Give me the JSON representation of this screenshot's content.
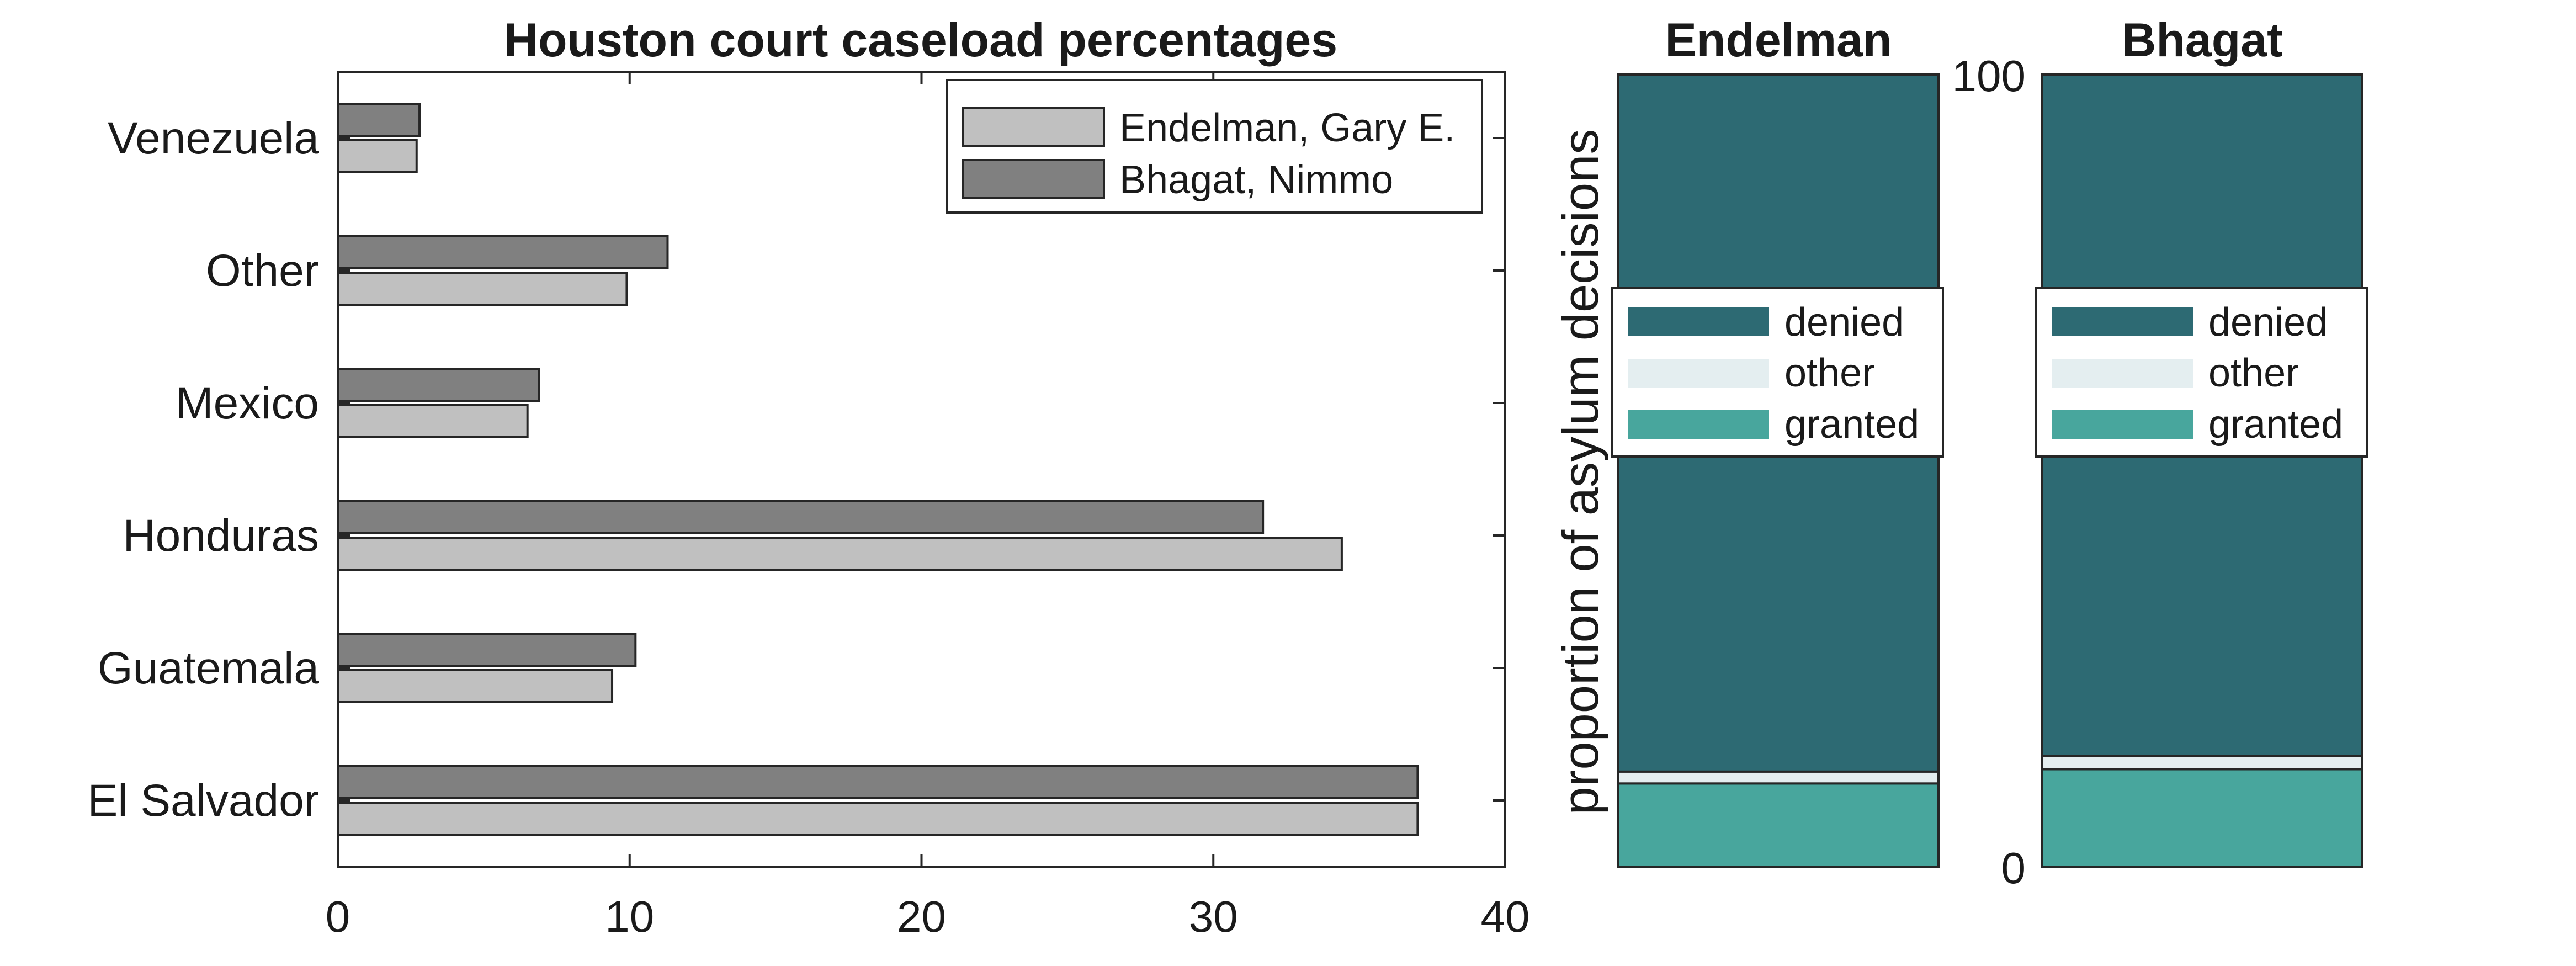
{
  "chart_data": [
    {
      "type": "bar",
      "orientation": "horizontal",
      "title": "Houston court caseload percentages",
      "categories": [
        "Venezuela",
        "Other",
        "Mexico",
        "Honduras",
        "Guatemala",
        "El Salvador"
      ],
      "series": [
        {
          "name": "Endelman, Gary E.",
          "values": [
            2.7,
            9.9,
            6.5,
            34.4,
            9.4,
            37.0
          ],
          "color": "#c0c0c0"
        },
        {
          "name": "Bhagat, Nimmo",
          "values": [
            2.8,
            11.3,
            6.9,
            31.7,
            10.2,
            37.0
          ],
          "color": "#808080"
        }
      ],
      "xlim": [
        0,
        40
      ],
      "xticks": [
        0,
        10,
        20,
        30,
        40
      ],
      "xlabel": "",
      "ylabel": "",
      "legend_position": "top-right"
    },
    {
      "type": "stacked-bar",
      "title": "Endelman",
      "ylabel": "proportion of asylum decisions",
      "ylim": [
        0,
        100
      ],
      "segments": [
        {
          "name": "granted",
          "value": 10.5,
          "color": "#48a69d"
        },
        {
          "name": "other",
          "value": 1.5,
          "color": "#e4eef0"
        },
        {
          "name": "denied",
          "value": 88.0,
          "color": "#2d6a73"
        }
      ],
      "legend": [
        "denied",
        "other",
        "granted"
      ],
      "legend_position": "middle"
    },
    {
      "type": "stacked-bar",
      "title": "Bhagat",
      "ylim": [
        0,
        100
      ],
      "yticks": [
        0,
        100
      ],
      "segments": [
        {
          "name": "granted",
          "value": 12.3,
          "color": "#48a69d"
        },
        {
          "name": "other",
          "value": 1.7,
          "color": "#e4eef0"
        },
        {
          "name": "denied",
          "value": 86.0,
          "color": "#2d6a73"
        }
      ],
      "legend": [
        "denied",
        "other",
        "granted"
      ],
      "legend_position": "middle"
    }
  ]
}
